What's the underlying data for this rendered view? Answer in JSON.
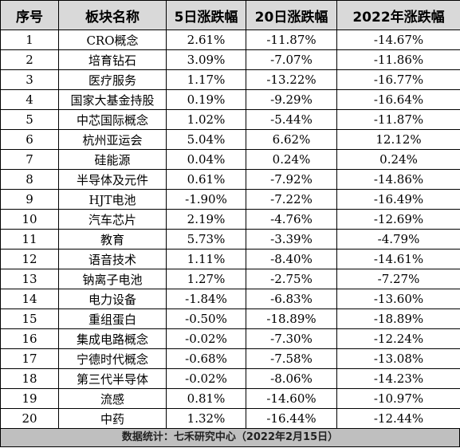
{
  "headers": [
    "序号",
    "板块名称",
    "5日涨跌幅",
    "20日涨跌幅",
    "2022年涨跌幅"
  ],
  "rows": [
    [
      "1",
      "CRO概念",
      "2.61%",
      "-11.87%",
      "-14.67%"
    ],
    [
      "2",
      "培育钻石",
      "3.09%",
      "-7.07%",
      "-11.86%"
    ],
    [
      "3",
      "医疗服务",
      "1.17%",
      "-13.22%",
      "-16.77%"
    ],
    [
      "4",
      "国家大基金持股",
      "0.19%",
      "-9.29%",
      "-16.64%"
    ],
    [
      "5",
      "中芯国际概念",
      "1.02%",
      "-5.44%",
      "-11.87%"
    ],
    [
      "6",
      "杭州亚运会",
      "5.04%",
      "6.62%",
      "12.12%"
    ],
    [
      "7",
      "硅能源",
      "0.04%",
      "0.24%",
      "0.24%"
    ],
    [
      "8",
      "半导体及元件",
      "0.61%",
      "-7.92%",
      "-14.86%"
    ],
    [
      "9",
      "HJT电池",
      "-1.90%",
      "-7.22%",
      "-16.49%"
    ],
    [
      "10",
      "汽车芯片",
      "2.19%",
      "-4.76%",
      "-12.69%"
    ],
    [
      "11",
      "教育",
      "5.73%",
      "-3.39%",
      "-4.79%"
    ],
    [
      "12",
      "语音技术",
      "1.11%",
      "-8.40%",
      "-14.61%"
    ],
    [
      "13",
      "钠离子电池",
      "1.27%",
      "-2.75%",
      "-7.27%"
    ],
    [
      "14",
      "电力设备",
      "-1.84%",
      "-6.83%",
      "-13.60%"
    ],
    [
      "15",
      "重组蛋白",
      "-0.50%",
      "-18.89%",
      "-18.89%"
    ],
    [
      "16",
      "集成电路概念",
      "-0.02%",
      "-7.30%",
      "-12.24%"
    ],
    [
      "17",
      "宁德时代概念",
      "-0.68%",
      "-7.58%",
      "-13.08%"
    ],
    [
      "18",
      "第三代半导体",
      "-0.02%",
      "-8.06%",
      "-14.23%"
    ],
    [
      "19",
      "流感",
      "0.81%",
      "-14.60%",
      "-10.97%"
    ],
    [
      "20",
      "中药",
      "1.32%",
      "-16.44%",
      "-12.44%"
    ]
  ],
  "footer": "数据统计：七禾研究中心（2022年2月15日）"
}
